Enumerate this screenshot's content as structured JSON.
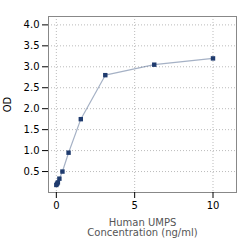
{
  "chart_data": {
    "type": "line",
    "x": [
      0.0,
      0.049,
      0.098,
      0.195,
      0.39,
      0.781,
      1.5625,
      3.125,
      6.25,
      10
    ],
    "values": [
      0.18,
      0.21,
      0.24,
      0.33,
      0.5,
      0.95,
      1.75,
      2.8,
      3.05,
      3.2
    ],
    "color": "#1f3b6e",
    "marker": "square",
    "xlabel": "Human UMPS\nConcentration (ng/ml)",
    "ylabel": "OD",
    "xlim": [
      -0.5,
      11.5
    ],
    "xticks": [
      0,
      5,
      10
    ],
    "ylim": [
      0,
      4.2
    ],
    "yticks": [
      0.5,
      1.0,
      1.5,
      2.0,
      2.5,
      3.0,
      3.5,
      4.0
    ],
    "grid": true
  }
}
